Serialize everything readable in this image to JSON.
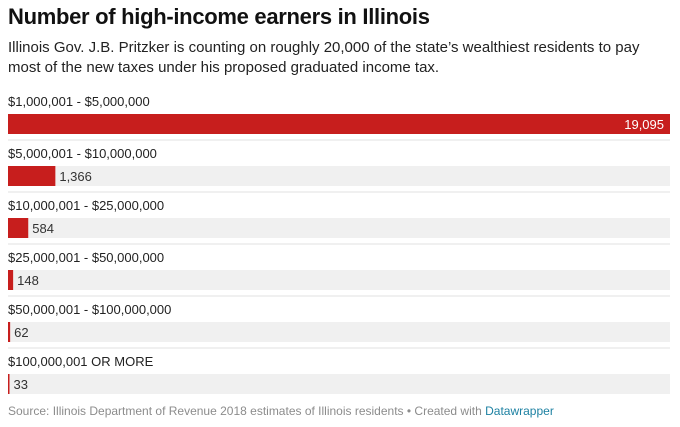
{
  "title": "Number of high-income earners in Illinois",
  "subtitle": "Illinois Gov. J.B. Pritzker is counting on roughly 20,000 of the state’s wealthiest residents to pay most of the new taxes under his proposed graduated income tax.",
  "footer": {
    "source_text": "Source: Illinois Department of Revenue 2018 estimates of Illinois residents • Created with ",
    "credit_link": "Datawrapper"
  },
  "colors": {
    "bar": "#c71e1d",
    "track": "#f0f0f0",
    "value_inside": "#ffffff",
    "value_outside": "#333333"
  },
  "chart_data": {
    "type": "bar",
    "orientation": "horizontal",
    "categories": [
      "$1,000,001 - $5,000,000",
      "$5,000,001 - $10,000,000",
      "$10,000,001 - $25,000,000",
      "$25,000,001 - $50,000,000",
      "$50,000,001 - $100,000,000",
      "$100,000,001 OR MORE"
    ],
    "values": [
      19095,
      1366,
      584,
      148,
      62,
      33
    ],
    "value_labels": [
      "19,095",
      "1,366",
      "584",
      "148",
      "62",
      "33"
    ],
    "xlim": [
      0,
      19095
    ],
    "grid": false,
    "legend": "none"
  }
}
